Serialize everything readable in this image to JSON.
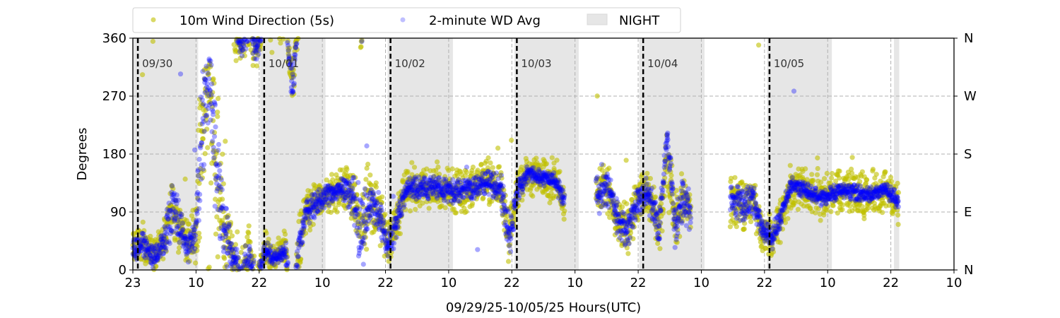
{
  "chart_data": {
    "type": "scatter",
    "xlabel": "09/29/25-10/05/25  Hours(UTC)",
    "ylabel": "Degrees",
    "ylim": [
      0,
      360
    ],
    "xlim_hours": [
      0,
      156
    ],
    "yticks": [
      0,
      90,
      180,
      270,
      360
    ],
    "right_ticks": [
      {
        "value": 0,
        "label": "N"
      },
      {
        "value": 90,
        "label": "E"
      },
      {
        "value": 180,
        "label": "S"
      },
      {
        "value": 270,
        "label": "W"
      },
      {
        "value": 360,
        "label": "N"
      }
    ],
    "xticks": [
      {
        "hour": 0,
        "label": "23"
      },
      {
        "hour": 12,
        "label": "10"
      },
      {
        "hour": 24,
        "label": "22"
      },
      {
        "hour": 36,
        "label": "10"
      },
      {
        "hour": 48,
        "label": "22"
      },
      {
        "hour": 60,
        "label": "10"
      },
      {
        "hour": 72,
        "label": "22"
      },
      {
        "hour": 84,
        "label": "10"
      },
      {
        "hour": 96,
        "label": "22"
      },
      {
        "hour": 108,
        "label": "10"
      },
      {
        "hour": 120,
        "label": "22"
      },
      {
        "hour": 132,
        "label": "10"
      },
      {
        "hour": 144,
        "label": "22"
      },
      {
        "hour": 156,
        "label": "10"
      }
    ],
    "grid": true,
    "legend": {
      "placement": "top",
      "entries": [
        {
          "label": "10m Wind Direction (5s)",
          "color": "#bfbf00"
        },
        {
          "label": "2-minute WD Avg",
          "color": "#0000ff"
        },
        {
          "label": "NIGHT",
          "color": "#e6e6e6"
        }
      ]
    },
    "day_markers": [
      {
        "hour": 0.95,
        "label": "09/30"
      },
      {
        "hour": 24.95,
        "label": "10/01"
      },
      {
        "hour": 48.95,
        "label": "10/02"
      },
      {
        "hour": 72.95,
        "label": "10/03"
      },
      {
        "hour": 96.95,
        "label": "10/04"
      },
      {
        "hour": 120.95,
        "label": "10/05"
      }
    ],
    "night_periods_hours": [
      [
        0,
        12.4
      ],
      [
        24.2,
        36.6
      ],
      [
        48.4,
        60.8
      ],
      [
        72.5,
        84.7
      ],
      [
        96.2,
        108.6
      ],
      [
        120.5,
        132.8
      ],
      [
        144.6,
        145.6
      ]
    ],
    "series": [
      {
        "name": "10m Wind Direction (5s)",
        "color": "#bfbf00",
        "description_keys": [
          "hour",
          "mean_deg",
          "spread_deg"
        ],
        "segments": [
          [
            [
              0,
              30,
              30
            ],
            [
              2,
              40,
              35
            ],
            [
              4,
              20,
              30
            ],
            [
              6,
              45,
              40
            ],
            [
              7.5,
              100,
              60
            ],
            [
              9,
              60,
              50
            ],
            [
              10.5,
              40,
              40
            ],
            [
              12,
              60,
              60
            ],
            [
              13,
              200,
              150
            ],
            [
              14.5,
              300,
              80
            ],
            [
              16,
              150,
              150
            ],
            [
              17.5,
              60,
              80
            ],
            [
              19,
              20,
              50
            ],
            [
              20.5,
              350,
              40
            ],
            [
              22,
              20,
              60
            ],
            [
              23.5,
              340,
              40
            ],
            [
              25,
              30,
              40
            ],
            [
              27,
              20,
              30
            ],
            [
              29,
              30,
              40
            ],
            [
              30.3,
              280,
              40
            ],
            [
              31.5,
              40,
              50
            ],
            [
              33,
              90,
              40
            ],
            [
              35,
              105,
              35
            ],
            [
              38,
              120,
              40
            ],
            [
              40,
              125,
              45
            ],
            [
              42,
              110,
              60
            ],
            [
              43.5,
              60,
              110
            ],
            [
              45,
              110,
              60
            ],
            [
              47,
              80,
              60
            ],
            [
              48.5,
              40,
              40
            ],
            [
              50,
              70,
              40
            ],
            [
              52,
              130,
              40
            ],
            [
              55,
              125,
              40
            ],
            [
              58,
              130,
              40
            ],
            [
              61,
              120,
              40
            ],
            [
              64,
              125,
              40
            ],
            [
              67,
              140,
              40
            ],
            [
              70,
              125,
              40
            ],
            [
              71.5,
              50,
              50
            ],
            [
              73,
              120,
              40
            ],
            [
              75,
              150,
              40
            ],
            [
              78,
              145,
              40
            ],
            [
              80,
              140,
              40
            ],
            [
              82,
              110,
              40
            ]
          ],
          [
            [
              88,
              120,
              45
            ],
            [
              90,
              130,
              45
            ],
            [
              92,
              80,
              45
            ],
            [
              94,
              60,
              45
            ],
            [
              96,
              110,
              40
            ],
            [
              98,
              120,
              40
            ],
            [
              100,
              60,
              40
            ],
            [
              101.5,
              180,
              80
            ],
            [
              103,
              70,
              50
            ],
            [
              104.5,
              110,
              50
            ],
            [
              106,
              90,
              40
            ]
          ],
          [
            [
              113.5,
              110,
              45
            ],
            [
              116,
              100,
              45
            ],
            [
              118,
              110,
              40
            ],
            [
              119.5,
              60,
              40
            ],
            [
              121.5,
              50,
              40
            ],
            [
              123,
              80,
              40
            ],
            [
              125,
              130,
              40
            ],
            [
              128,
              125,
              40
            ],
            [
              131,
              110,
              45
            ],
            [
              134,
              125,
              40
            ],
            [
              137,
              120,
              40
            ],
            [
              140,
              115,
              40
            ],
            [
              143,
              125,
              40
            ],
            [
              145.5,
              105,
              40
            ]
          ]
        ]
      },
      {
        "name": "2-minute WD Avg",
        "color": "#0000ff",
        "description_keys": [
          "hour",
          "mean_deg",
          "spread_deg"
        ],
        "segments": [
          [
            [
              0,
              30,
              20
            ],
            [
              2,
              40,
              25
            ],
            [
              4,
              20,
              20
            ],
            [
              6,
              45,
              30
            ],
            [
              7.5,
              100,
              60
            ],
            [
              9,
              60,
              40
            ],
            [
              10.5,
              40,
              30
            ],
            [
              12,
              60,
              40
            ],
            [
              13,
              200,
              120
            ],
            [
              14.5,
              300,
              60
            ],
            [
              16,
              150,
              120
            ],
            [
              17.5,
              60,
              60
            ],
            [
              19,
              20,
              30
            ],
            [
              20.5,
              350,
              30
            ],
            [
              22,
              20,
              40
            ],
            [
              23.5,
              340,
              20
            ],
            [
              25,
              30,
              20
            ],
            [
              27,
              20,
              15
            ],
            [
              29,
              30,
              20
            ],
            [
              30.3,
              280,
              30
            ],
            [
              31.5,
              40,
              30
            ],
            [
              33,
              90,
              25
            ],
            [
              35,
              105,
              20
            ],
            [
              38,
              120,
              20
            ],
            [
              40,
              125,
              20
            ],
            [
              42,
              110,
              40
            ],
            [
              43.5,
              60,
              90
            ],
            [
              45,
              110,
              40
            ],
            [
              47,
              80,
              40
            ],
            [
              48.5,
              40,
              30
            ],
            [
              50,
              70,
              30
            ],
            [
              52,
              130,
              20
            ],
            [
              55,
              125,
              20
            ],
            [
              58,
              130,
              20
            ],
            [
              61,
              120,
              20
            ],
            [
              64,
              125,
              20
            ],
            [
              67,
              140,
              25
            ],
            [
              70,
              125,
              25
            ],
            [
              71.5,
              50,
              40
            ],
            [
              73,
              120,
              20
            ],
            [
              75,
              150,
              15
            ],
            [
              78,
              145,
              15
            ],
            [
              80,
              140,
              15
            ],
            [
              82,
              110,
              20
            ]
          ],
          [
            [
              88,
              120,
              40
            ],
            [
              90,
              130,
              40
            ],
            [
              92,
              80,
              30
            ],
            [
              94,
              60,
              30
            ],
            [
              96,
              110,
              30
            ],
            [
              98,
              120,
              30
            ],
            [
              100,
              60,
              30
            ],
            [
              101.5,
              215,
              20
            ],
            [
              103,
              70,
              40
            ],
            [
              104.5,
              110,
              40
            ],
            [
              106,
              90,
              30
            ]
          ],
          [
            [
              113.5,
              110,
              30
            ],
            [
              116,
              100,
              30
            ],
            [
              118,
              110,
              30
            ],
            [
              119.5,
              60,
              20
            ],
            [
              121.5,
              50,
              20
            ],
            [
              123,
              80,
              20
            ],
            [
              125,
              130,
              15
            ],
            [
              128,
              125,
              15
            ],
            [
              131,
              110,
              15
            ],
            [
              134,
              125,
              15
            ],
            [
              137,
              120,
              15
            ],
            [
              140,
              115,
              15
            ],
            [
              143,
              125,
              15
            ],
            [
              145.5,
              105,
              15
            ]
          ]
        ]
      }
    ]
  }
}
